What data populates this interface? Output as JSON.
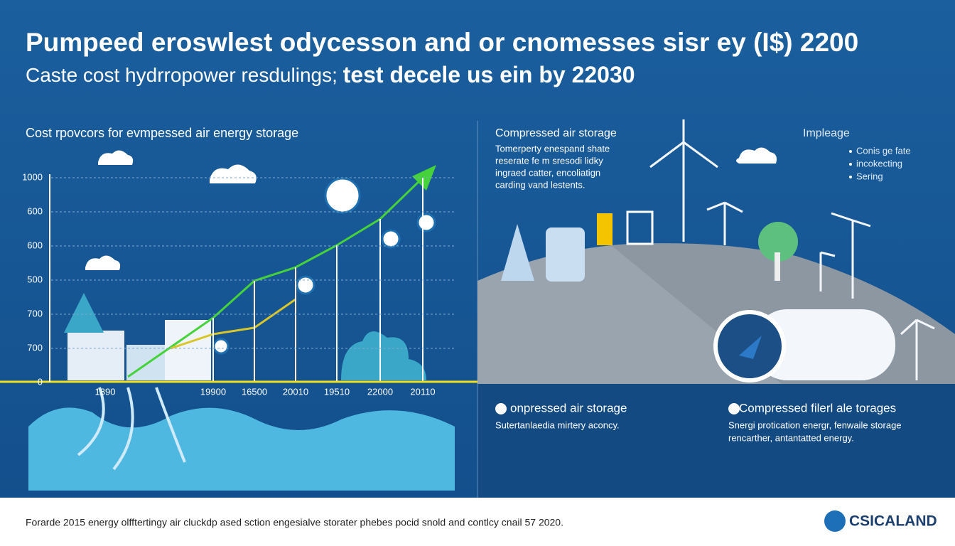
{
  "header": {
    "title": "Pumpeed eroswlest odycesson and or cnomesses sisr ey (I$) 2200",
    "subtitle_light": "Caste cost hydrropower resdulings;",
    "subtitle_bold": "test decele us ein by 22030"
  },
  "left_panel": {
    "title": "Cost rpovcors for evmpessed air energy storage",
    "y_labels": [
      "1000",
      "600",
      "600",
      "500",
      "700",
      "700",
      "0"
    ],
    "x_labels": [
      "1890",
      "19900",
      "16500",
      "20010",
      "19510",
      "22000",
      "20110"
    ]
  },
  "right_panel": {
    "title": "Compressed air storage",
    "text": [
      "Tomerperty enespand shate",
      "reserate fe m sresodi lidky",
      "ingraed catter, encoliatign",
      "carding vand lestents."
    ],
    "legend_title": "Impleage",
    "legend_items": [
      "Conis ge fate",
      "incokecting",
      "Sering"
    ]
  },
  "cards": [
    {
      "title": "onpressed air storage",
      "text": [
        "Sutertanlaedia mirtery aconcy."
      ]
    },
    {
      "title": "Compressed filerl ale torages",
      "text": [
        "Snergi protication energr, fenwaile storage",
        "rencarther, antantatted energy."
      ]
    }
  ],
  "footer": {
    "text": "Forarde 2015 energy olfftertingy air cluckdp ased sction engesialve storater phebes pocid snold and contlcy cnail 57 2020.",
    "brand": "CSICALAND"
  }
}
